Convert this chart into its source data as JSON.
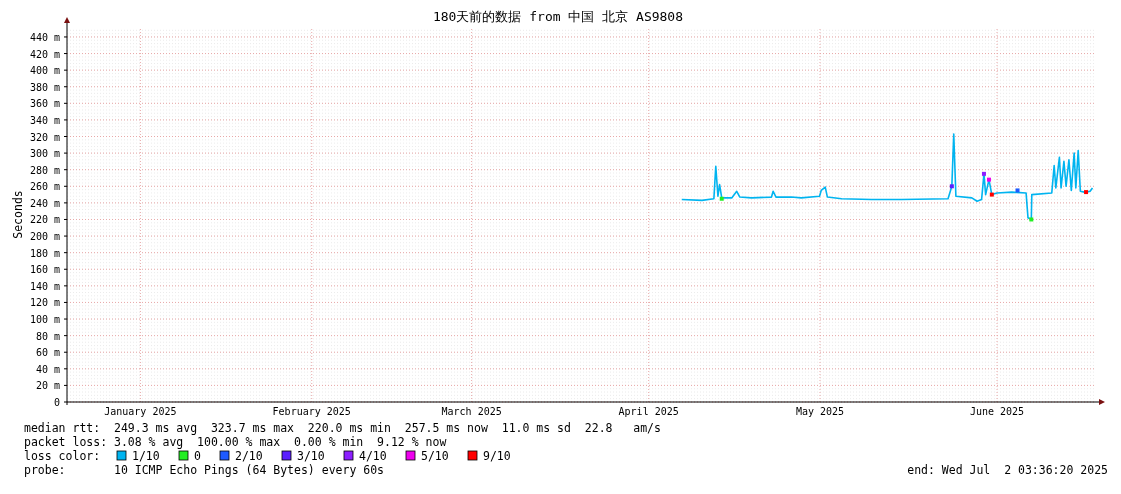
{
  "chart_data": {
    "type": "line",
    "title": "180天前的数据 from 中国 北京 AS9808",
    "ylabel": "Seconds",
    "x": [
      "2025-04-20T19:00",
      "2025-04-24T08:00",
      "2025-04-26T10:00",
      "2025-04-26T18:00",
      "2025-04-27T03:00",
      "2025-04-27T10:00",
      "2025-04-27T19:00",
      "2025-04-29T13:00",
      "2025-04-30T10:00",
      "2025-04-30T23:00",
      "2025-05-03T00:00",
      "2025-05-06T12:00",
      "2025-05-06T19:00",
      "2025-05-07T07:00",
      "2025-05-10T00:00",
      "2025-05-11T17:00",
      "2025-05-14T22:00",
      "2025-05-15T05:00",
      "2025-05-15T22:00",
      "2025-05-16T07:00",
      "2025-05-18T19:00",
      "2025-05-24T00:00",
      "2025-05-29T07:00",
      "2025-06-06T10:00",
      "2025-06-07T02:00",
      "2025-06-07T10:00",
      "2025-06-07T19:00",
      "2025-06-10T14:00",
      "2025-06-11T12:00",
      "2025-06-12T07:00",
      "2025-06-12T17:00",
      "2025-06-13T00:00",
      "2025-06-13T14:00",
      "2025-06-14T02:00",
      "2025-06-15T00:00",
      "2025-06-17T14:00",
      "2025-06-20T02:00",
      "2025-06-20T10:00",
      "2025-06-21T00:00",
      "2025-06-21T02:00",
      "2025-06-24T14:00",
      "2025-06-25T00:00",
      "2025-06-25T07:00",
      "2025-06-25T22:00",
      "2025-06-26T05:00",
      "2025-06-26T17:00",
      "2025-06-27T02:00",
      "2025-06-27T14:00",
      "2025-06-28T00:00",
      "2025-06-28T12:00",
      "2025-06-28T19:00",
      "2025-06-29T05:00",
      "2025-06-29T14:00",
      "2025-06-30T07:00",
      "2025-06-30T14:00",
      "2025-07-01T07:00",
      "2025-07-01T17:00"
    ],
    "series": [
      {
        "name": "1/10",
        "color": "#00b4f0",
        "values": [
          244,
          243,
          245,
          284,
          248,
          262,
          246,
          246,
          254,
          247,
          246,
          247,
          254,
          247,
          247,
          246,
          248,
          255,
          259,
          247,
          245,
          244,
          244,
          245,
          260,
          323,
          248,
          246,
          242,
          244,
          275,
          250,
          268,
          250,
          252,
          253,
          252,
          222,
          220,
          250,
          252,
          285,
          258,
          295,
          258,
          290,
          260,
          292,
          255,
          300,
          258,
          303,
          254,
          253,
          253,
          254,
          258
        ]
      },
      {
        "name": "0",
        "type": "scatter",
        "marker": "square",
        "color": "#22ee22",
        "x": [
          "2025-04-27T19:00",
          "2025-06-21T00:00"
        ],
        "values": [
          245,
          220
        ]
      },
      {
        "name": "2/10",
        "type": "scatter",
        "marker": "square",
        "color": "#1e5aff",
        "x": [
          "2025-06-18T14:00"
        ],
        "values": [
          255
        ]
      },
      {
        "name": "3/10",
        "type": "scatter",
        "marker": "square",
        "color": "#5a1eff",
        "x": [
          "2025-06-07T02:00"
        ],
        "values": [
          260
        ]
      },
      {
        "name": "4/10",
        "type": "scatter",
        "marker": "square",
        "color": "#8c1eff",
        "x": [
          "2025-06-12T17:00"
        ],
        "values": [
          275
        ]
      },
      {
        "name": "5/10",
        "type": "scatter",
        "marker": "square",
        "color": "#ee00ee",
        "x": [
          "2025-06-13T14:00"
        ],
        "values": [
          268
        ]
      },
      {
        "name": "9/10",
        "type": "scatter",
        "marker": "square",
        "color": "#ff0000",
        "x": [
          "2025-06-14T02:00",
          "2025-06-30T14:00"
        ],
        "values": [
          250,
          253
        ]
      }
    ],
    "legend_title": "loss color:",
    "legend": "bottom",
    "xlim": [
      "2025-01-03T03:36",
      "2025-07-02T03:36"
    ],
    "xticks": [
      {
        "value": "2025-01-16",
        "label": "January 2025"
      },
      {
        "value": "2025-02-15",
        "label": "February 2025"
      },
      {
        "value": "2025-03-15",
        "label": "March 2025"
      },
      {
        "value": "2025-04-15",
        "label": "April 2025"
      },
      {
        "value": "2025-05-15",
        "label": "May 2025"
      },
      {
        "value": "2025-06-15",
        "label": "June 2025"
      }
    ],
    "ylim": [
      0,
      452
    ],
    "yticks": [
      0,
      {
        "value": 20,
        "label": "20 m"
      },
      {
        "value": 40,
        "label": "40 m"
      },
      {
        "value": 60,
        "label": "60 m"
      },
      {
        "value": 80,
        "label": "80 m"
      },
      {
        "value": 100,
        "label": "100 m"
      },
      {
        "value": 120,
        "label": "120 m"
      },
      {
        "value": 140,
        "label": "140 m"
      },
      {
        "value": 160,
        "label": "160 m"
      },
      {
        "value": 180,
        "label": "180 m"
      },
      {
        "value": 200,
        "label": "200 m"
      },
      {
        "value": 220,
        "label": "220 m"
      },
      {
        "value": 240,
        "label": "240 m"
      },
      {
        "value": 260,
        "label": "260 m"
      },
      {
        "value": 280,
        "label": "280 m"
      },
      {
        "value": 300,
        "label": "300 m"
      },
      {
        "value": 320,
        "label": "320 m"
      },
      {
        "value": 340,
        "label": "340 m"
      },
      {
        "value": 360,
        "label": "360 m"
      },
      {
        "value": 380,
        "label": "380 m"
      },
      {
        "value": 400,
        "label": "400 m"
      },
      {
        "value": 420,
        "label": "420 m"
      },
      {
        "value": 440,
        "label": "440 m"
      }
    ],
    "grid": true,
    "line_style": "solid",
    "annotations": [
      "median rtt:  249.3 ms avg  323.7 ms max  220.0 ms min  257.5 ms now  11.0 ms sd  22.8   am/s",
      "packet loss: 3.08 % avg  100.00 % max  0.00 % min  9.12 % now",
      "probe:       10 ICMP Echo Pings (64 Bytes) every 60s",
      "end: Wed Jul  2 03:36:20 2025"
    ]
  }
}
